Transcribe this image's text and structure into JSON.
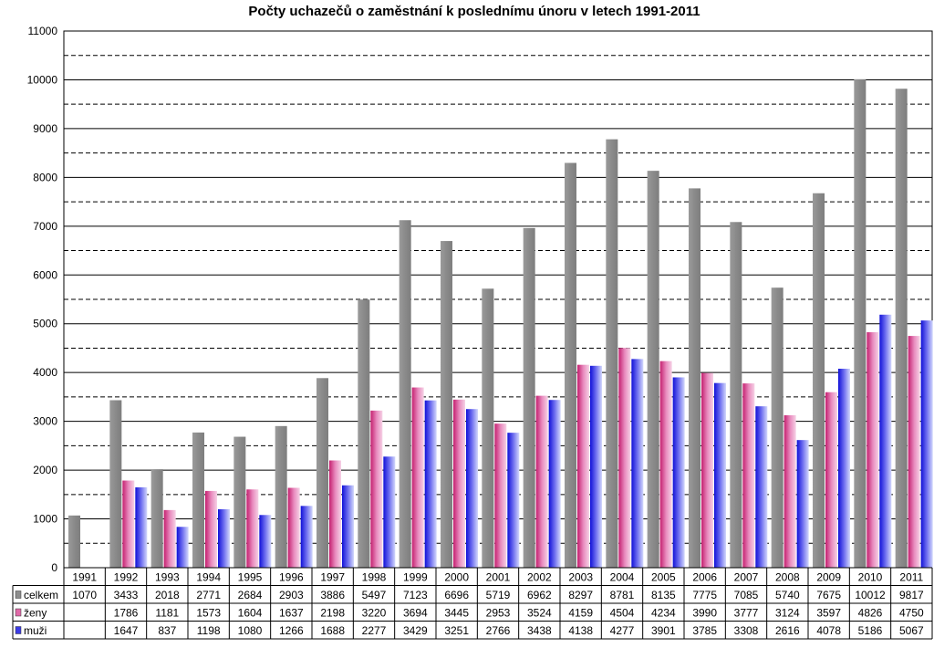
{
  "chart_data": {
    "type": "bar",
    "title": "Počty uchazečů o zaměstnání k poslednímu únoru v letech 1991-2011",
    "categories": [
      "1991",
      "1992",
      "1993",
      "1994",
      "1995",
      "1996",
      "1997",
      "1998",
      "1999",
      "2000",
      "2001",
      "2002",
      "2003",
      "2004",
      "2005",
      "2006",
      "2007",
      "2008",
      "2009",
      "2010",
      "2011"
    ],
    "ylim": [
      0,
      11000
    ],
    "yticks": [
      0,
      1000,
      2000,
      3000,
      4000,
      5000,
      6000,
      7000,
      8000,
      9000,
      10000,
      11000
    ],
    "grid": true,
    "legend": "data table",
    "series": [
      {
        "name": "celkem",
        "color": "#8c8c8c",
        "values": [
          1070,
          3433,
          2018,
          2771,
          2684,
          2903,
          3886,
          5497,
          7123,
          6696,
          5719,
          6962,
          8297,
          8781,
          8135,
          7775,
          7085,
          5740,
          7675,
          10012,
          9817
        ],
        "cells": [
          "1070",
          "3433",
          "2018",
          "2771",
          "2684",
          "2903",
          "3886",
          "5497",
          "7123",
          "6696",
          "5719",
          "6962",
          "8297",
          "8781",
          "8135",
          "7775",
          "7085",
          "5740",
          "7675",
          "10012",
          "9817"
        ]
      },
      {
        "name": "ženy",
        "color": "#d6307f",
        "values": [
          null,
          1786,
          1181,
          1573,
          1604,
          1637,
          2198,
          3220,
          3694,
          3445,
          2953,
          3524,
          4159,
          4504,
          4234,
          3990,
          3777,
          3124,
          3597,
          4826,
          4750
        ],
        "cells": [
          "",
          "1786",
          "1181",
          "1573",
          "1604",
          "1637",
          "2198",
          "3220",
          "3694",
          "3445",
          "2953",
          "3524",
          "4159",
          "4504",
          "4234",
          "3990",
          "3777",
          "3124",
          "3597",
          "4826",
          "4750"
        ]
      },
      {
        "name": "muži",
        "color": "#1f1fe0",
        "values": [
          null,
          1647,
          837,
          1198,
          1080,
          1266,
          1688,
          2277,
          3429,
          3251,
          2766,
          3438,
          4138,
          4277,
          3901,
          3785,
          3308,
          2616,
          4078,
          5186,
          5067
        ],
        "cells": [
          "",
          "1647",
          "837",
          "1198",
          "1080",
          "1266",
          "1688",
          "2277",
          "3429",
          "3251",
          "2766",
          "3438",
          "4138",
          "4277",
          "3901",
          "3785",
          "3308",
          "2616",
          "4078",
          "5186",
          "5067"
        ]
      }
    ]
  }
}
